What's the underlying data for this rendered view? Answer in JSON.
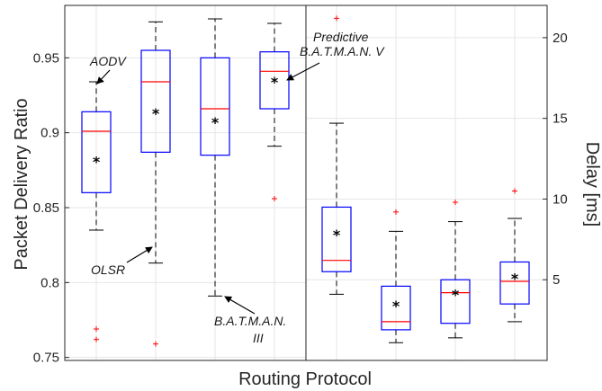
{
  "chart_data": [
    {
      "type": "box",
      "panel": "left",
      "categories": [
        "AODV",
        "OLSR",
        "B.A.T.M.A.N. III",
        "Predictive B.A.T.M.A.N. V"
      ],
      "xlabel": "Routing Protocol",
      "ylabel": "Packet Delivery Ratio",
      "ylim": [
        0.748,
        0.985
      ],
      "yticks": [
        0.75,
        0.8,
        0.85,
        0.9,
        0.95
      ],
      "ytick_labels": [
        "0.75",
        "0.8",
        "0.85",
        "0.9",
        "0.95"
      ],
      "grid": true,
      "boxes": [
        {
          "whisker_low": 0.835,
          "q1": 0.86,
          "median": 0.901,
          "q3": 0.914,
          "whisker_high": 0.934,
          "mean": 0.881,
          "outliers": [
            0.769,
            0.762
          ]
        },
        {
          "whisker_low": 0.813,
          "q1": 0.887,
          "median": 0.934,
          "q3": 0.955,
          "whisker_high": 0.974,
          "mean": 0.913,
          "outliers": [
            0.759
          ]
        },
        {
          "whisker_low": 0.791,
          "q1": 0.885,
          "median": 0.916,
          "q3": 0.95,
          "whisker_high": 0.976,
          "mean": 0.907,
          "outliers": []
        },
        {
          "whisker_low": 0.891,
          "q1": 0.916,
          "median": 0.941,
          "q3": 0.954,
          "whisker_high": 0.973,
          "mean": 0.934,
          "outliers": [
            0.856
          ]
        }
      ],
      "annotations": [
        "AODV",
        "OLSR",
        "B.A.T.M.A.N.",
        "III",
        "Predictive",
        "B.A.T.M.A.N. V"
      ]
    },
    {
      "type": "box",
      "panel": "right",
      "categories": [
        "AODV",
        "OLSR",
        "B.A.T.M.A.N. III",
        "Predictive B.A.T.M.A.N. V"
      ],
      "ylabel": "Delay [ms]",
      "ylim": [
        0,
        22
      ],
      "yticks": [
        5,
        10,
        15,
        20
      ],
      "ytick_labels": [
        "5",
        "10",
        "15",
        "20"
      ],
      "grid": true,
      "boxes": [
        {
          "whisker_low": 4.1,
          "q1": 5.5,
          "median": 6.2,
          "q3": 9.5,
          "whisker_high": 14.7,
          "mean": 7.8,
          "outliers": [
            21.2
          ]
        },
        {
          "whisker_low": 1.1,
          "q1": 1.9,
          "median": 2.4,
          "q3": 4.6,
          "whisker_high": 8.0,
          "mean": 3.4,
          "outliers": [
            9.2
          ]
        },
        {
          "whisker_low": 1.4,
          "q1": 2.3,
          "median": 4.2,
          "q3": 5.0,
          "whisker_high": 8.6,
          "mean": 4.1,
          "outliers": [
            9.8
          ]
        },
        {
          "whisker_low": 2.4,
          "q1": 3.5,
          "median": 4.9,
          "q3": 6.1,
          "whisker_high": 8.8,
          "mean": 5.1,
          "outliers": [
            10.5
          ]
        }
      ]
    }
  ],
  "colors": {
    "box": "#0000ff",
    "median": "#ff0000",
    "outlier": "#ff0000",
    "whisker": "#000000",
    "grid": "#e6e6e6",
    "axis": "#262626"
  }
}
